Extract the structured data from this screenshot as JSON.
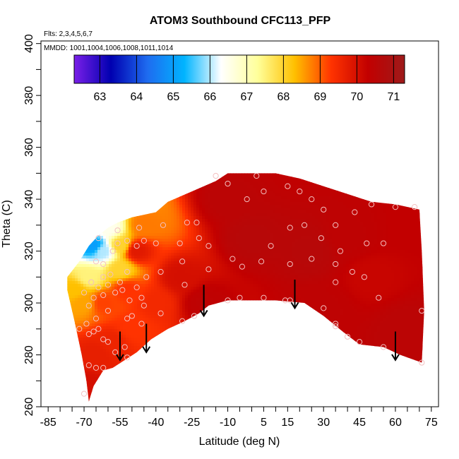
{
  "chart_data": {
    "type": "heatmap",
    "title": "ATOM3 Southbound CFC113_PFP",
    "flights_note": "Flts: 2,3,4,5,6,7",
    "mmdd_note": "MMDD: 1001,1004,1006,1008,1011,1014",
    "xlabel": "Latitude (deg N)",
    "ylabel": "Theta (C)",
    "xlim": [
      -88,
      78
    ],
    "ylim": [
      260,
      401
    ],
    "x_ticks": [
      "-85",
      "-70",
      "-55",
      "-40",
      "-25",
      "-10",
      "5",
      "15",
      "30",
      "45",
      "60",
      "75"
    ],
    "y_ticks": [
      "260",
      "280",
      "300",
      "320",
      "340",
      "360",
      "380",
      "400"
    ],
    "colorbar": {
      "range": [
        62.3,
        71.3
      ],
      "tick_labels": [
        "63",
        "64",
        "65",
        "66",
        "67",
        "68",
        "69",
        "70",
        "71"
      ],
      "colors": [
        "#7a1fe8",
        "#0000b0",
        "#1e6cf0",
        "#00b4ff",
        "#ffffff",
        "#ffff9a",
        "#ffc000",
        "#ff3300",
        "#c20000",
        "#9e1a1a"
      ]
    },
    "field_upper_boundary": [
      {
        "lat": -68,
        "theta": 262
      },
      {
        "lat": -69,
        "theta": 270
      },
      {
        "lat": -71,
        "theta": 280
      },
      {
        "lat": -74,
        "theta": 293
      },
      {
        "lat": -77,
        "theta": 305
      },
      {
        "lat": -77,
        "theta": 310
      },
      {
        "lat": -72,
        "theta": 316
      },
      {
        "lat": -68,
        "theta": 322
      },
      {
        "lat": -64,
        "theta": 326
      },
      {
        "lat": -60,
        "theta": 329
      },
      {
        "lat": -56,
        "theta": 331
      },
      {
        "lat": -50,
        "theta": 333
      },
      {
        "lat": -45,
        "theta": 334
      },
      {
        "lat": -40,
        "theta": 335
      },
      {
        "lat": -35,
        "theta": 339
      },
      {
        "lat": -25,
        "theta": 343
      },
      {
        "lat": -15,
        "theta": 347
      },
      {
        "lat": -10,
        "theta": 350
      },
      {
        "lat": 10,
        "theta": 350
      },
      {
        "lat": 20,
        "theta": 348
      },
      {
        "lat": 30,
        "theta": 345
      },
      {
        "lat": 40,
        "theta": 342
      },
      {
        "lat": 50,
        "theta": 339
      },
      {
        "lat": 60,
        "theta": 338
      },
      {
        "lat": 70,
        "theta": 336
      },
      {
        "lat": 71,
        "theta": 320
      },
      {
        "lat": 72,
        "theta": 297
      },
      {
        "lat": 71,
        "theta": 277
      }
    ],
    "field_lower_boundary": [
      {
        "lat": 71,
        "theta": 277
      },
      {
        "lat": 62,
        "theta": 280
      },
      {
        "lat": 55,
        "theta": 283
      },
      {
        "lat": 45,
        "theta": 284
      },
      {
        "lat": 38,
        "theta": 289
      },
      {
        "lat": 30,
        "theta": 295
      },
      {
        "lat": 22,
        "theta": 300
      },
      {
        "lat": 10,
        "theta": 301
      },
      {
        "lat": -10,
        "theta": 301
      },
      {
        "lat": -18,
        "theta": 299
      },
      {
        "lat": -22,
        "theta": 296
      },
      {
        "lat": -28,
        "theta": 293
      },
      {
        "lat": -35,
        "theta": 290
      },
      {
        "lat": -42,
        "theta": 286
      },
      {
        "lat": -48,
        "theta": 281
      },
      {
        "lat": -53,
        "theta": 278
      },
      {
        "lat": -58,
        "theta": 275
      },
      {
        "lat": -62,
        "theta": 274
      },
      {
        "lat": -66,
        "theta": 268
      },
      {
        "lat": -68,
        "theta": 262
      }
    ],
    "color_anchors": [
      {
        "lat": 0,
        "theta": 325,
        "value": 70.6
      },
      {
        "lat": 25,
        "theta": 320,
        "value": 70.6
      },
      {
        "lat": -10,
        "theta": 340,
        "value": 70.5
      },
      {
        "lat": 50,
        "theta": 310,
        "value": 70.2
      },
      {
        "lat": 40,
        "theta": 325,
        "value": 70.4
      },
      {
        "lat": -30,
        "theta": 310,
        "value": 70.0
      },
      {
        "lat": -40,
        "theta": 300,
        "value": 69.5
      },
      {
        "lat": -50,
        "theta": 290,
        "value": 69.3
      },
      {
        "lat": -48,
        "theta": 320,
        "value": 69.8
      },
      {
        "lat": -45,
        "theta": 330,
        "value": 68.8
      },
      {
        "lat": -55,
        "theta": 322,
        "value": 68.0
      },
      {
        "lat": -62,
        "theta": 320,
        "value": 66.0
      },
      {
        "lat": -66,
        "theta": 322,
        "value": 65.0
      },
      {
        "lat": -60,
        "theta": 329,
        "value": 66.5
      },
      {
        "lat": -55,
        "theta": 313,
        "value": 68.0
      },
      {
        "lat": -52,
        "theta": 305,
        "value": 69.3
      },
      {
        "lat": -62,
        "theta": 300,
        "value": 69.2
      },
      {
        "lat": -70,
        "theta": 300,
        "value": 68.5
      },
      {
        "lat": -74,
        "theta": 305,
        "value": 68.3
      },
      {
        "lat": -68,
        "theta": 310,
        "value": 67.5
      },
      {
        "lat": -65,
        "theta": 280,
        "value": 69.7
      },
      {
        "lat": -58,
        "theta": 285,
        "value": 69.6
      },
      {
        "lat": -69,
        "theta": 268,
        "value": 70.0
      },
      {
        "lat": -20,
        "theta": 300,
        "value": 70.4
      },
      {
        "lat": 65,
        "theta": 290,
        "value": 70.5
      },
      {
        "lat": 68,
        "theta": 330,
        "value": 70.3
      },
      {
        "lat": 30,
        "theta": 298,
        "value": 70.4
      }
    ],
    "sample_points": [
      {
        "lat": -70,
        "theta": 265
      },
      {
        "lat": -68,
        "theta": 276
      },
      {
        "lat": -65,
        "theta": 275
      },
      {
        "lat": -62,
        "theta": 275
      },
      {
        "lat": -52,
        "theta": 279
      },
      {
        "lat": -53,
        "theta": 283
      },
      {
        "lat": -57,
        "theta": 281
      },
      {
        "lat": -60,
        "theta": 285
      },
      {
        "lat": -62,
        "theta": 286
      },
      {
        "lat": -66,
        "theta": 289
      },
      {
        "lat": -68,
        "theta": 288
      },
      {
        "lat": -64,
        "theta": 290
      },
      {
        "lat": -72,
        "theta": 290
      },
      {
        "lat": -69,
        "theta": 292
      },
      {
        "lat": -65,
        "theta": 294
      },
      {
        "lat": -60,
        "theta": 297
      },
      {
        "lat": -52,
        "theta": 294
      },
      {
        "lat": -50,
        "theta": 295
      },
      {
        "lat": -46,
        "theta": 292
      },
      {
        "lat": -45,
        "theta": 299
      },
      {
        "lat": -38,
        "theta": 296
      },
      {
        "lat": -29,
        "theta": 293
      },
      {
        "lat": -24,
        "theta": 295
      },
      {
        "lat": -68,
        "theta": 299
      },
      {
        "lat": -66,
        "theta": 302
      },
      {
        "lat": -62,
        "theta": 303
      },
      {
        "lat": -57,
        "theta": 304
      },
      {
        "lat": -54,
        "theta": 305
      },
      {
        "lat": -51,
        "theta": 301
      },
      {
        "lat": -46,
        "theta": 302
      },
      {
        "lat": -70,
        "theta": 304
      },
      {
        "lat": -64,
        "theta": 306
      },
      {
        "lat": -60,
        "theta": 307
      },
      {
        "lat": -55,
        "theta": 308
      },
      {
        "lat": -48,
        "theta": 306
      },
      {
        "lat": -44,
        "theta": 310
      },
      {
        "lat": -67,
        "theta": 308
      },
      {
        "lat": -62,
        "theta": 310
      },
      {
        "lat": -59,
        "theta": 311
      },
      {
        "lat": -52,
        "theta": 312
      },
      {
        "lat": -38,
        "theta": 312
      },
      {
        "lat": -28,
        "theta": 307
      },
      {
        "lat": -65,
        "theta": 316
      },
      {
        "lat": -62,
        "theta": 315
      },
      {
        "lat": -58,
        "theta": 320
      },
      {
        "lat": -56,
        "theta": 323
      },
      {
        "lat": -52,
        "theta": 324
      },
      {
        "lat": -48,
        "theta": 322
      },
      {
        "lat": -45,
        "theta": 324
      },
      {
        "lat": -40,
        "theta": 323
      },
      {
        "lat": -30,
        "theta": 323
      },
      {
        "lat": -22,
        "theta": 325
      },
      {
        "lat": -64,
        "theta": 325
      },
      {
        "lat": -56,
        "theta": 328
      },
      {
        "lat": -47,
        "theta": 329
      },
      {
        "lat": -37,
        "theta": 330
      },
      {
        "lat": -27,
        "theta": 331
      },
      {
        "lat": -23,
        "theta": 331
      },
      {
        "lat": -29,
        "theta": 316
      },
      {
        "lat": -18,
        "theta": 313
      },
      {
        "lat": -8,
        "theta": 317
      },
      {
        "lat": 4,
        "theta": 316
      },
      {
        "lat": 16,
        "theta": 315
      },
      {
        "lat": 25,
        "theta": 317
      },
      {
        "lat": 35,
        "theta": 315
      },
      {
        "lat": 42,
        "theta": 312
      },
      {
        "lat": -18,
        "theta": 322
      },
      {
        "lat": -10,
        "theta": 301
      },
      {
        "lat": -5,
        "theta": 302
      },
      {
        "lat": 5,
        "theta": 302
      },
      {
        "lat": 14,
        "theta": 301
      },
      {
        "lat": 16,
        "theta": 301
      },
      {
        "lat": -4,
        "theta": 314
      },
      {
        "lat": 8,
        "theta": 322
      },
      {
        "lat": 16,
        "theta": 329
      },
      {
        "lat": 22,
        "theta": 330
      },
      {
        "lat": 29,
        "theta": 325
      },
      {
        "lat": 35,
        "theta": 330
      },
      {
        "lat": 37,
        "theta": 320
      },
      {
        "lat": 48,
        "theta": 323
      },
      {
        "lat": 55,
        "theta": 323
      },
      {
        "lat": 43,
        "theta": 335
      },
      {
        "lat": 50,
        "theta": 338
      },
      {
        "lat": 60,
        "theta": 337
      },
      {
        "lat": 68,
        "theta": 337
      },
      {
        "lat": 25,
        "theta": 340
      },
      {
        "lat": 30,
        "theta": 336
      },
      {
        "lat": 15,
        "theta": 345
      },
      {
        "lat": 5,
        "theta": 343
      },
      {
        "lat": -2,
        "theta": 340
      },
      {
        "lat": -10,
        "theta": 346
      },
      {
        "lat": -15,
        "theta": 349
      },
      {
        "lat": 2,
        "theta": 349
      },
      {
        "lat": 20,
        "theta": 343
      },
      {
        "lat": 47,
        "theta": 310
      },
      {
        "lat": 53,
        "theta": 302
      },
      {
        "lat": 35,
        "theta": 308
      },
      {
        "lat": 30,
        "theta": 298
      },
      {
        "lat": 35,
        "theta": 292
      },
      {
        "lat": 35,
        "theta": 291
      },
      {
        "lat": 40,
        "theta": 287
      },
      {
        "lat": 45,
        "theta": 285
      },
      {
        "lat": 55,
        "theta": 283
      },
      {
        "lat": 71,
        "theta": 297
      },
      {
        "lat": 71,
        "theta": 277
      }
    ],
    "arrows": [
      {
        "lat": -55,
        "theta_top": 289,
        "theta_tip": 278
      },
      {
        "lat": -44,
        "theta_top": 292,
        "theta_tip": 281
      },
      {
        "lat": -20,
        "theta_top": 307,
        "theta_tip": 295
      },
      {
        "lat": 18,
        "theta_top": 309,
        "theta_tip": 298
      },
      {
        "lat": 60,
        "theta_top": 289,
        "theta_tip": 278
      }
    ]
  }
}
